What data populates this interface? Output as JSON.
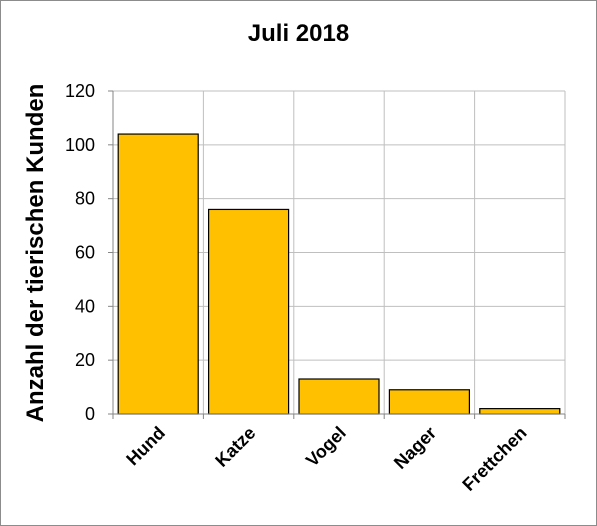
{
  "chart_data": {
    "type": "bar",
    "title": "Juli 2018",
    "xlabel": "",
    "ylabel": "Anzahl der tierischen Kunden",
    "categories": [
      "Hund",
      "Katze",
      "Vogel",
      "Nager",
      "Frettchen"
    ],
    "values": [
      104,
      76,
      13,
      9,
      2
    ],
    "ylim": [
      0,
      120
    ],
    "yticks": [
      0,
      20,
      40,
      60,
      80,
      100,
      120
    ],
    "grid": true,
    "legend": "none",
    "colors": {
      "bar_fill": "#ffc000",
      "bar_stroke": "#000000",
      "grid": "#bfbfbf"
    }
  }
}
